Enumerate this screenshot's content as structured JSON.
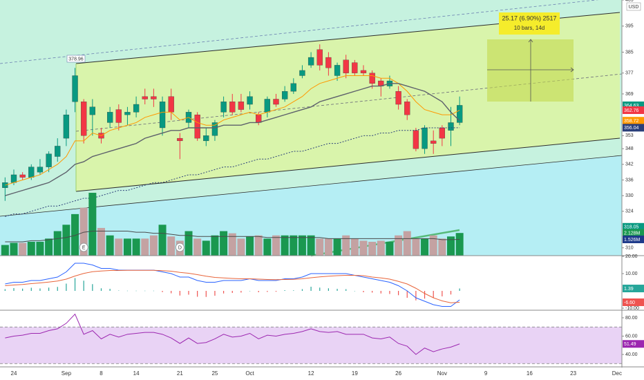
{
  "chart_data": [
    {
      "type": "candlestick",
      "currency": "USD",
      "categories": [
        null,
        "24",
        null,
        null,
        null,
        null,
        null,
        "Sep",
        null,
        null,
        null,
        "8",
        null,
        null,
        null,
        "14",
        null,
        null,
        null,
        null,
        "21",
        null,
        null,
        null,
        "25",
        null,
        null,
        null,
        "Oct",
        null,
        null,
        null,
        null,
        null,
        null,
        "12",
        null,
        null,
        null,
        null,
        "19",
        null,
        null,
        null,
        null,
        "26",
        null,
        null,
        null,
        null,
        "Nov",
        null,
        null,
        null,
        null,
        "9",
        null,
        null,
        null,
        null,
        "16",
        null,
        null,
        null,
        null,
        "23",
        null,
        null,
        null,
        null,
        "Dec"
      ],
      "values": [
        [
          333,
          337,
          328,
          335
        ],
        [
          335,
          340,
          334,
          338
        ],
        [
          338,
          339,
          336,
          337
        ],
        [
          337,
          342,
          336,
          341
        ],
        [
          339,
          344,
          338,
          341
        ],
        [
          341,
          347,
          339,
          346
        ],
        [
          345,
          352,
          343,
          349
        ],
        [
          352,
          363,
          349,
          361
        ],
        [
          366,
          378.96,
          362,
          376
        ],
        [
          366,
          367,
          350,
          353
        ],
        [
          361,
          367,
          353,
          364
        ],
        [
          354,
          356,
          350,
          352
        ],
        [
          358,
          364,
          356,
          362
        ],
        [
          363,
          365,
          355,
          358
        ],
        [
          361,
          364,
          357,
          362
        ],
        [
          362,
          368,
          360,
          365
        ],
        [
          368,
          371,
          365,
          367
        ],
        [
          368,
          371,
          364,
          367
        ],
        [
          356,
          368,
          353,
          366
        ],
        [
          368,
          371,
          359,
          362
        ],
        [
          352,
          354,
          344,
          351
        ],
        [
          358,
          363,
          356,
          362
        ],
        [
          361,
          362,
          351,
          352
        ],
        [
          351,
          356,
          349,
          353
        ],
        [
          353,
          359,
          351,
          358
        ],
        [
          362,
          368,
          360,
          366
        ],
        [
          366,
          369,
          361,
          362
        ],
        [
          366,
          369,
          362,
          363
        ],
        [
          365,
          370,
          363,
          368
        ],
        [
          361,
          362,
          357,
          358
        ],
        [
          362,
          368,
          360,
          367
        ],
        [
          367,
          369,
          364,
          365
        ],
        [
          367,
          372,
          366,
          370
        ],
        [
          370,
          375,
          369,
          373
        ],
        [
          376,
          380,
          375,
          378
        ],
        [
          380,
          385,
          379,
          383
        ],
        [
          386,
          388,
          378,
          380
        ],
        [
          383,
          385,
          376,
          379
        ],
        [
          376,
          381,
          374,
          380
        ],
        [
          382,
          384,
          375,
          377
        ],
        [
          381,
          382,
          376,
          377
        ],
        [
          378,
          380,
          376,
          377
        ],
        [
          377,
          378,
          371,
          373
        ],
        [
          374,
          375,
          368,
          372
        ],
        [
          372,
          376,
          371,
          374
        ],
        [
          370,
          372,
          363,
          365
        ],
        [
          366,
          367,
          359,
          361
        ],
        [
          355,
          356,
          347,
          348
        ],
        [
          348,
          357,
          346,
          356
        ],
        [
          351,
          355,
          346,
          350
        ],
        [
          356,
          357,
          349,
          352
        ],
        [
          355,
          364,
          349,
          358
        ],
        [
          358,
          368,
          357,
          364.63
        ],
        null,
        null,
        null,
        null,
        null,
        null,
        null,
        null,
        null,
        null,
        null,
        null,
        null,
        null,
        null,
        null,
        null,
        null
      ],
      "up_color": "#089981",
      "down_color": "#f23645",
      "ylim": [
        307,
        405
      ],
      "yticks": [
        310,
        324,
        330,
        336,
        342,
        348,
        353,
        369,
        377,
        385,
        395,
        405
      ],
      "moving_averages": [
        {
          "color": "#ff9800",
          "line_style": "solid",
          "values": [
            334,
            335,
            336,
            337,
            338,
            340,
            342,
            345,
            351,
            351,
            354,
            353,
            355,
            356,
            357,
            358,
            360,
            361,
            362,
            362,
            359,
            360,
            358,
            357,
            357,
            359,
            360,
            361,
            362,
            361,
            362,
            363,
            364,
            366,
            368,
            371,
            373,
            374,
            375,
            376,
            376,
            376,
            376,
            375,
            375,
            373,
            370,
            366,
            363,
            362,
            361,
            361,
            362.76,
            null,
            null,
            null,
            null,
            null,
            null,
            null,
            null,
            null,
            null,
            null,
            null,
            null,
            null,
            null,
            null,
            null,
            null
          ]
        },
        {
          "color": "#5d606b",
          "line_style": "solid",
          "values": [
            330,
            331,
            332,
            333,
            334,
            335,
            337,
            339,
            342,
            343,
            345,
            346,
            347,
            348,
            349,
            350,
            352,
            353,
            354,
            355,
            355,
            356,
            356,
            356,
            356,
            357,
            357,
            357,
            358,
            358,
            359,
            360,
            361,
            362,
            363,
            364,
            366,
            367,
            368,
            369,
            370,
            371,
            372,
            372,
            373,
            373,
            372,
            371,
            370,
            368,
            366,
            362,
            358.72,
            null,
            null,
            null,
            null,
            null,
            null,
            null,
            null,
            null,
            null,
            null,
            null,
            null,
            null,
            null,
            null,
            null,
            null
          ]
        },
        {
          "color": "#2a3f7a",
          "line_style": "dotted",
          "values": [
            322,
            323,
            323,
            324,
            325,
            326,
            326,
            327,
            328,
            329,
            329,
            330,
            331,
            332,
            332,
            333,
            334,
            335,
            335,
            336,
            337,
            338,
            338,
            339,
            340,
            341,
            341,
            342,
            343,
            344,
            344,
            345,
            346,
            347,
            347,
            348,
            349,
            350,
            350,
            351,
            352,
            353,
            353,
            354,
            354,
            355,
            355,
            355,
            356,
            356,
            356,
            356,
            356.04,
            null,
            null,
            null,
            null,
            null,
            null,
            null,
            null,
            null,
            null,
            null,
            null,
            null,
            null,
            null,
            null,
            null,
            null
          ]
        }
      ],
      "price_labels": [
        {
          "value": 364.63,
          "color": "#089981"
        },
        {
          "value": 362.76,
          "color": "#f23645"
        },
        {
          "value": 358.72,
          "color": "#ff9800"
        },
        {
          "value": 356.04,
          "color": "#2a3f7a"
        },
        {
          "value": 318.05,
          "color": "#089981"
        }
      ],
      "high_label": "378.96",
      "measure": {
        "text": "25.17 (6.90%) 2517",
        "subtext": "10 bars, 14d"
      },
      "events": [
        "E",
        "D"
      ]
    },
    {
      "type": "bar",
      "values": [
        1.0,
        1.2,
        1.2,
        1.3,
        1.3,
        1.6,
        2.3,
        2.9,
        3.9,
        4.5,
        5.9,
        2.6,
        1.9,
        1.6,
        1.6,
        1.6,
        1.6,
        1.9,
        2.9,
        1.8,
        1.4,
        2.3,
        1.6,
        1.4,
        1.9,
        2.3,
        2.1,
        1.6,
        1.8,
        1.9,
        1.6,
        1.9,
        1.9,
        1.9,
        1.9,
        1.9,
        1.6,
        1.6,
        1.6,
        1.9,
        1.6,
        1.4,
        1.3,
        1.4,
        1.3,
        1.9,
        2.3,
        1.6,
        1.6,
        1.9,
        1.6,
        1.8,
        2.128,
        null,
        null,
        null,
        null,
        null,
        null,
        null,
        null,
        null,
        null,
        null,
        null,
        null,
        null,
        null,
        null,
        null,
        null
      ],
      "up_color": "#1a9850",
      "down_color": "#c4a2a2",
      "ylim": [
        0,
        24
      ],
      "moving_averages": [
        {
          "color": "#4a4a4a",
          "line_style": "solid",
          "values": [
            1.3,
            1.3,
            1.3,
            1.4,
            1.4,
            1.5,
            1.6,
            1.7,
            1.9,
            2.2,
            2.3,
            2.3,
            2.3,
            2.3,
            2.3,
            2.2,
            2.2,
            2.1,
            2.1,
            2.0,
            1.9,
            1.9,
            1.8,
            1.8,
            1.8,
            1.8,
            1.8,
            1.8,
            1.8,
            1.8,
            1.7,
            1.7,
            1.7,
            1.7,
            1.7,
            1.7,
            1.7,
            1.6,
            1.6,
            1.6,
            1.6,
            1.6,
            1.6,
            1.6,
            1.6,
            1.6,
            1.6,
            1.6,
            1.6,
            1.6,
            1.5,
            1.5,
            1.526,
            null,
            null,
            null,
            null,
            null,
            null,
            null,
            null,
            null,
            null,
            null,
            null,
            null,
            null,
            null,
            null,
            null,
            null
          ]
        }
      ],
      "price_labels": [
        {
          "value": 2.128,
          "label": "2.128M",
          "color": "#1a9850"
        },
        {
          "value": 1.526,
          "label": "1.526M",
          "color": "#1e3a8a"
        }
      ]
    },
    {
      "type": "line",
      "series": [
        {
          "color": "#2962ff",
          "values": [
            4,
            5,
            5,
            6,
            6,
            7,
            8,
            11,
            16,
            16,
            15,
            13,
            13,
            12,
            12,
            12,
            12,
            12,
            11,
            10,
            8,
            8,
            6,
            5,
            5,
            6,
            6,
            6,
            7,
            6,
            6,
            6,
            7,
            7,
            8,
            10,
            10,
            10,
            10,
            10,
            9,
            8,
            7,
            6,
            5,
            3,
            0,
            -4,
            -6,
            -8,
            -9,
            -9,
            -5.21,
            null,
            null,
            null,
            null,
            null,
            null,
            null,
            null,
            null,
            null,
            null,
            null,
            null,
            null,
            null,
            null,
            null,
            null
          ]
        },
        {
          "color": "#e8643a",
          "values": [
            3,
            3.4,
            3.7,
            4.2,
            4.6,
            5.1,
            5.7,
            6.8,
            8.6,
            10.1,
            11.1,
            11.5,
            11.8,
            11.8,
            11.9,
            11.9,
            11.9,
            11.9,
            11.7,
            11.4,
            10.7,
            10.2,
            9.4,
            8.5,
            7.8,
            7.5,
            7.2,
            7,
            7,
            6.8,
            6.6,
            6.5,
            6.6,
            6.7,
            7,
            7.6,
            8.1,
            8.5,
            8.8,
            9,
            9,
            8.8,
            8,
            7.5,
            6.8,
            5.5,
            4,
            1.5,
            -1.5,
            -4,
            -5.8,
            -6.9,
            -6.6,
            null,
            null,
            null,
            null,
            null,
            null,
            null,
            null,
            null,
            null,
            null,
            null,
            null,
            null,
            null,
            null,
            null,
            null
          ]
        }
      ],
      "histogram": {
        "up_color": "#26a69a",
        "down_color": "#ef5350",
        "values": [
          1,
          1.6,
          1.3,
          1.8,
          1.4,
          1.9,
          2.3,
          4.2,
          7.4,
          5.9,
          3.9,
          1.5,
          1.2,
          0.2,
          0.1,
          0.1,
          0.1,
          0.1,
          -0.7,
          -1.4,
          -2.7,
          -2.2,
          -3.4,
          -3.5,
          -2.8,
          -1.5,
          -1.2,
          -1,
          0,
          -0.8,
          -0.6,
          -0.5,
          0.4,
          0.3,
          1,
          2.4,
          1.9,
          1.5,
          1.2,
          1,
          0,
          -0.8,
          -1,
          -1.5,
          -1.8,
          -2.5,
          -4,
          -5.5,
          -4.5,
          -4,
          -3.2,
          -2.1,
          1.39,
          null,
          null,
          null,
          null,
          null,
          null,
          null,
          null,
          null,
          null,
          null,
          null,
          null,
          null,
          null,
          null,
          null,
          null
        ]
      },
      "ylim": [
        -11.2,
        20.4
      ],
      "yticks": [
        {
          "value": -10,
          "label": "-10.00"
        },
        {
          "value": 10,
          "label": "10.00"
        },
        {
          "value": 20,
          "label": "20.00"
        }
      ],
      "price_labels": [
        {
          "value": 1.39,
          "color": "#26a69a"
        },
        {
          "value": -6.6,
          "label": "-6.60",
          "color": "#ef5350"
        }
      ]
    },
    {
      "type": "line",
      "series": [
        {
          "color": "#9c27b0",
          "values": [
            58,
            60,
            61,
            63,
            63,
            66,
            68,
            74,
            84,
            62,
            66,
            57,
            62,
            59,
            62,
            63,
            64,
            64,
            62,
            58,
            52,
            58,
            52,
            53,
            57,
            62,
            59,
            60,
            63,
            57,
            61,
            60,
            62,
            63,
            65,
            68,
            65,
            64,
            65,
            62,
            62,
            62,
            58,
            57,
            59,
            52,
            49,
            40,
            47,
            43,
            46,
            48,
            51.49,
            null,
            null,
            null,
            null,
            null,
            null,
            null,
            null,
            null,
            null,
            null,
            null,
            null,
            null,
            null,
            null,
            null,
            null
          ]
        }
      ],
      "bands": [
        30,
        70
      ],
      "band_color": "#e9d3f5",
      "ylim": [
        27.2,
        87.5
      ],
      "yticks": [
        {
          "value": 40,
          "label": "40.00"
        },
        {
          "value": 60,
          "label": "60.00"
        },
        {
          "value": 80,
          "label": "80.00"
        }
      ],
      "price_labels": [
        {
          "value": 51.49,
          "color": "#9c27b0"
        }
      ]
    }
  ]
}
